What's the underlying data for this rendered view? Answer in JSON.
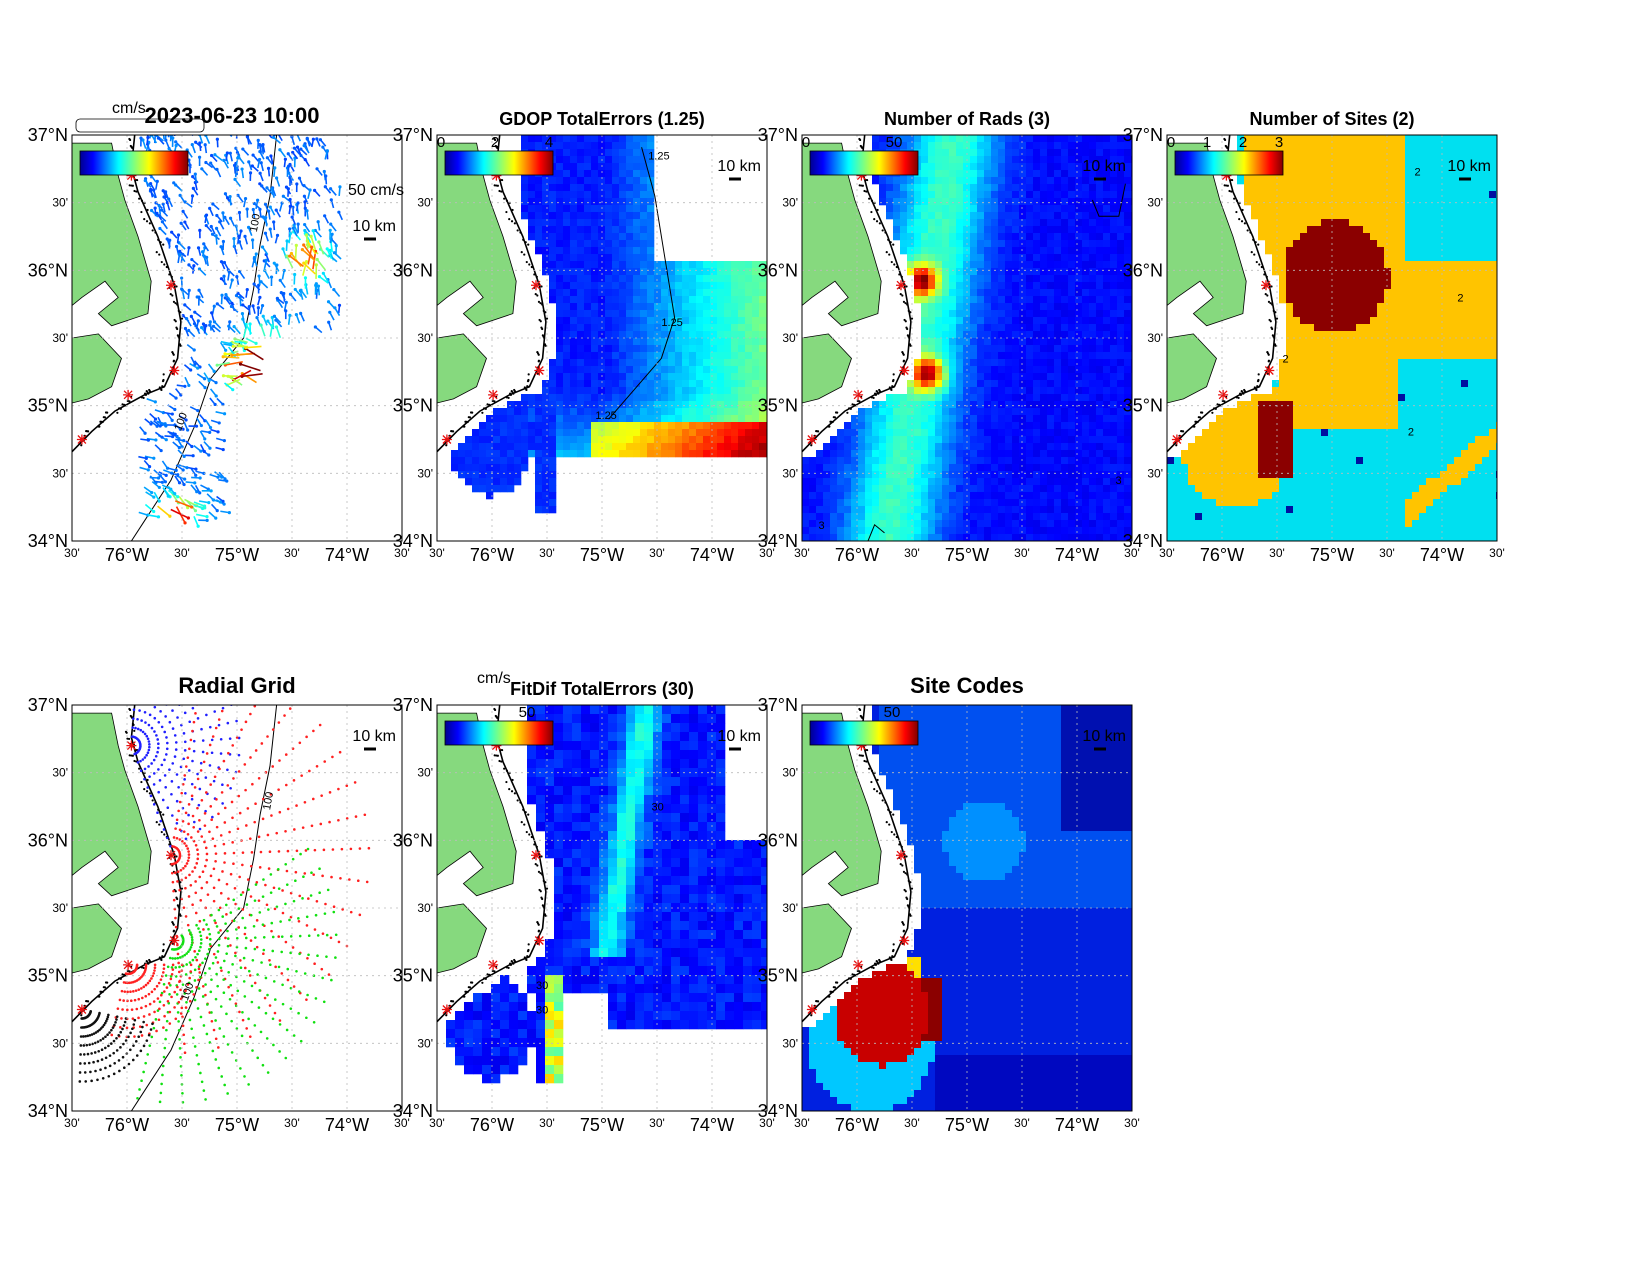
{
  "figure_title": "2023-06-23 10:00",
  "panels": [
    {
      "id": "currents",
      "title": "",
      "colorbar_unit": "cm/s",
      "colorbar_ticks": [],
      "scale_label": "10 km",
      "vector_scale_label": "50 cm/s",
      "contour_labels": [
        "100",
        "100"
      ]
    },
    {
      "id": "gdop",
      "title": "GDOP TotalErrors (1.25)",
      "colorbar_ticks": [
        "0",
        "2",
        "4"
      ],
      "scale_label": "10 km",
      "contour_labels": [
        "1.25",
        "1.25",
        "1.25"
      ]
    },
    {
      "id": "nrads",
      "title": "Number of Rads (3)",
      "colorbar_ticks": [
        "0",
        "50"
      ],
      "scale_label": "10 km",
      "contour_labels": [
        "3",
        "3"
      ]
    },
    {
      "id": "nsites",
      "title": "Number of Sites (2)",
      "colorbar_ticks": [
        "0",
        "1",
        "2",
        "3"
      ],
      "scale_label": "10 km",
      "contour_labels": [
        "2",
        "2",
        "2",
        "2"
      ]
    },
    {
      "id": "radgrid",
      "title": "Radial Grid",
      "scale_label": "10 km",
      "contour_labels": [
        "100",
        "100"
      ]
    },
    {
      "id": "fitdif",
      "title": "FitDif TotalErrors (30)",
      "colorbar_unit": "cm/s",
      "colorbar_ticks": [
        "50"
      ],
      "scale_label": "10 km",
      "contour_labels": [
        "30",
        "30",
        "30"
      ]
    },
    {
      "id": "sitecodes",
      "title": "Site Codes",
      "colorbar_ticks": [
        "50"
      ],
      "scale_label": "10 km",
      "contour_labels": []
    }
  ],
  "axes": {
    "y_labels": [
      "37°N",
      "30'",
      "36°N",
      "30'",
      "35°N",
      "30'",
      "34°N"
    ],
    "x_labels": [
      "30'",
      "76°W",
      "30'",
      "75°W",
      "30'",
      "74°W",
      "30'"
    ]
  },
  "colors": {
    "land": "#86d97e",
    "ocean_deep": "#0000c8",
    "jet_cyan": "#00e0f0",
    "jet_orange": "#ffc400",
    "jet_darkred": "#8b0000",
    "site_marker": "#e81010"
  }
}
